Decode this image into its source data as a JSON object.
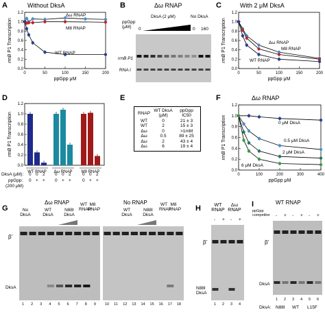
{
  "panels": {
    "A": {
      "label": "A",
      "title": "Without DksA",
      "ylabel": "rrnB P1 Transcription",
      "xlabel": "ppGpp μM",
      "series_labels": [
        "Δω RNAP",
        "M8 RNAP",
        "WT RNAP"
      ]
    },
    "B": {
      "label": "B",
      "title": "Δω RNAP",
      "dksa_label": "DksA (2 μM)",
      "nodksa_label": "No DksA",
      "ppgpp_label": "ppGpp (μM)",
      "ppgpp_values": [
        "0",
        "0",
        "160"
      ],
      "row_labels": [
        "rrnB P1",
        "RNA I"
      ]
    },
    "C": {
      "label": "C",
      "title": "With 2 μM DksA",
      "ylabel": "rrnB P1 Transcription",
      "xlabel": "ppGpp μM",
      "series_labels": [
        "Δω RNAP",
        "M8 RNAP",
        "WT RNAP"
      ]
    },
    "D": {
      "label": "D",
      "ylabel": "rrnB P1 Transcription",
      "group_labels": [
        "WT RNAP",
        "Δω RNAP",
        "M8 RNAP"
      ],
      "dksa_row_label": "DksA (μM):",
      "dksa_values": [
        "0",
        "0",
        "2",
        "0",
        "0",
        "2",
        "0",
        "0",
        "2"
      ],
      "ppgpp_row_label": "ppGpp:",
      "ppgpp_conc": "(200 μM)",
      "ppgpp_values": [
        "0",
        "+",
        "+",
        "0",
        "+",
        "+",
        "0",
        "+",
        "+"
      ]
    },
    "E": {
      "label": "E",
      "headers": [
        "RNAP",
        "WT DksA (μM)",
        "ppGpp IC50"
      ],
      "rows": [
        [
          "WT",
          "0",
          "21 ± 3"
        ],
        [
          "WT",
          "2",
          "15 ± 3"
        ],
        [
          "Δω",
          "0",
          ">1mM"
        ],
        [
          "Δω",
          "0.5",
          "89 ± 25"
        ],
        [
          "Δω",
          "2",
          "43 ± 4"
        ],
        [
          "Δω",
          "6",
          "19 ± 4"
        ]
      ]
    },
    "F": {
      "label": "F",
      "title": "Δω RNAP",
      "ylabel": "rrnB P1 Transcription",
      "xlabel": "ppGpp μM",
      "series_labels": [
        "0 μM DksA",
        "0.5 μM DksA",
        "2 μM DksA",
        "6 μM DksA"
      ]
    },
    "G": {
      "label": "G",
      "group1": "Δω RNAP",
      "group2": "No RNAP",
      "no_dksa": "No DksA",
      "wt_dksa": "WT DksA",
      "n88i_dksa": "N88I DksA",
      "wt_rnap": "WT RNAP",
      "m8_rnap": "M8 RNAP",
      "beta_label": "β'",
      "dksa_label": "DksA",
      "lanes": [
        "1",
        "2",
        "3",
        "4",
        "5",
        "6",
        "7",
        "8",
        "9",
        "10",
        "11",
        "12",
        "13",
        "14",
        "15",
        "16",
        "17",
        "18"
      ]
    },
    "H": {
      "label": "H",
      "wt_rnap": "WT RNAP",
      "dw_rnap": "Δω RNAP",
      "marks": [
        "-",
        "+",
        "-",
        "+"
      ],
      "beta_label": "β'",
      "n88i_label": "N88I DksA",
      "lanes": [
        "1",
        "2",
        "3",
        "4"
      ]
    },
    "I": {
      "label": "I",
      "title": "WT RNAP",
      "competitor_label": "ppGpp competitor",
      "marks": [
        "-",
        "+",
        "-",
        "+",
        "-",
        "+"
      ],
      "beta_label": "β'",
      "dksa_label": "DksA",
      "lanes": [
        "1",
        "2",
        "3",
        "4",
        "5",
        "6"
      ],
      "dksa_row": "DksA:",
      "dksa_variants": [
        "N88I",
        "WT",
        "L15F"
      ]
    }
  },
  "chart_data": [
    {
      "panel": "A",
      "type": "line",
      "title": "Without DksA",
      "xlabel": "ppGpp μM",
      "ylabel": "rrnB P1 Transcription",
      "xlim": [
        0,
        200
      ],
      "ylim": [
        0,
        1.2
      ],
      "xticks": [
        0,
        50,
        100,
        150,
        200
      ],
      "yticks": [
        0,
        0.2,
        0.4,
        0.6,
        0.8,
        1.0,
        1.2
      ],
      "series": [
        {
          "name": "Δω RNAP",
          "color": "#4a90c8",
          "x": [
            0,
            5,
            10,
            20,
            50,
            100,
            150,
            200
          ],
          "y": [
            1.0,
            1.07,
            1.0,
            1.06,
            1.05,
            1.08,
            1.06,
            1.05
          ]
        },
        {
          "name": "M8 RNAP",
          "color": "#c0262a",
          "x": [
            0,
            5,
            10,
            20,
            50,
            100,
            200
          ],
          "y": [
            1.0,
            0.97,
            0.98,
            0.98,
            1.0,
            1.0,
            0.99
          ]
        },
        {
          "name": "WT RNAP",
          "color": "#2c3e8c",
          "x": [
            0,
            5,
            10,
            20,
            50,
            100,
            200
          ],
          "y": [
            1.0,
            0.85,
            0.72,
            0.55,
            0.35,
            0.3,
            0.3
          ]
        }
      ]
    },
    {
      "panel": "C",
      "type": "line",
      "title": "With 2 μM DksA",
      "xlabel": "ppGpp μM",
      "ylabel": "rrnB P1 Transcription",
      "xlim": [
        0,
        200
      ],
      "ylim": [
        0,
        1.2
      ],
      "xticks": [
        0,
        50,
        100,
        150,
        200
      ],
      "yticks": [
        0,
        0.2,
        0.4,
        0.6,
        0.8,
        1.0,
        1.2
      ],
      "series": [
        {
          "name": "Δω RNAP",
          "color": "#4a90c8",
          "x": [
            0,
            10,
            20,
            50,
            100,
            200
          ],
          "y": [
            1.0,
            0.85,
            0.7,
            0.5,
            0.35,
            0.22
          ]
        },
        {
          "name": "M8 RNAP",
          "color": "#c0262a",
          "x": [
            0,
            10,
            20,
            50,
            100,
            200
          ],
          "y": [
            1.0,
            0.82,
            0.65,
            0.42,
            0.3,
            0.2
          ]
        },
        {
          "name": "WT RNAP",
          "color": "#2c3e8c",
          "x": [
            0,
            10,
            20,
            50,
            100,
            200
          ],
          "y": [
            1.0,
            0.7,
            0.5,
            0.3,
            0.2,
            0.15
          ]
        }
      ]
    },
    {
      "panel": "D",
      "type": "bar",
      "ylabel": "rrnB P1 Transcription",
      "ylim": [
        0,
        1.2
      ],
      "yticks": [
        0,
        0.2,
        0.4,
        0.6,
        0.8,
        1.0,
        1.2
      ],
      "categories": [
        "WT 0/0",
        "WT 0/+",
        "WT 2/+",
        "Δω 0/0",
        "Δω 0/+",
        "Δω 2/+",
        "M8 0/0",
        "M8 0/+",
        "M8 2/+"
      ],
      "values": [
        1.0,
        0.25,
        0.05,
        1.0,
        1.08,
        0.4,
        1.0,
        1.02,
        0.18
      ],
      "colors": [
        "#1f2a8a",
        "#1f2a8a",
        "#1f2a8a",
        "#1a8aa0",
        "#1a8aa0",
        "#1a8aa0",
        "#a01a1a",
        "#a01a1a",
        "#a01a1a"
      ]
    },
    {
      "panel": "F",
      "type": "line",
      "title": "Δω RNAP",
      "xlabel": "ppGpp μM",
      "ylabel": "rrnB P1 Transcription",
      "xlim": [
        0,
        400
      ],
      "ylim": [
        0,
        1.2
      ],
      "xticks": [
        0,
        100,
        200,
        300,
        400
      ],
      "yticks": [
        0,
        0.2,
        0.4,
        0.6,
        0.8,
        1.0,
        1.2
      ],
      "series": [
        {
          "name": "0 μM DksA",
          "color": "#2c3e8c",
          "x": [
            0,
            50,
            100,
            200,
            400
          ],
          "y": [
            1.0,
            1.0,
            0.98,
            0.95,
            0.92
          ]
        },
        {
          "name": "0.5 μM DksA",
          "color": "#4a90c8",
          "x": [
            0,
            25,
            50,
            100,
            200,
            400
          ],
          "y": [
            1.0,
            0.85,
            0.72,
            0.58,
            0.45,
            0.38
          ]
        },
        {
          "name": "2 μM DksA",
          "color": "#1a7a5a",
          "x": [
            0,
            25,
            50,
            100,
            200,
            400
          ],
          "y": [
            1.0,
            0.7,
            0.5,
            0.35,
            0.25,
            0.22
          ]
        },
        {
          "name": "6 μM DksA",
          "color": "#3a9a3a",
          "x": [
            0,
            25,
            50,
            100,
            200,
            400
          ],
          "y": [
            1.0,
            0.55,
            0.35,
            0.2,
            0.12,
            0.1
          ]
        }
      ]
    }
  ]
}
